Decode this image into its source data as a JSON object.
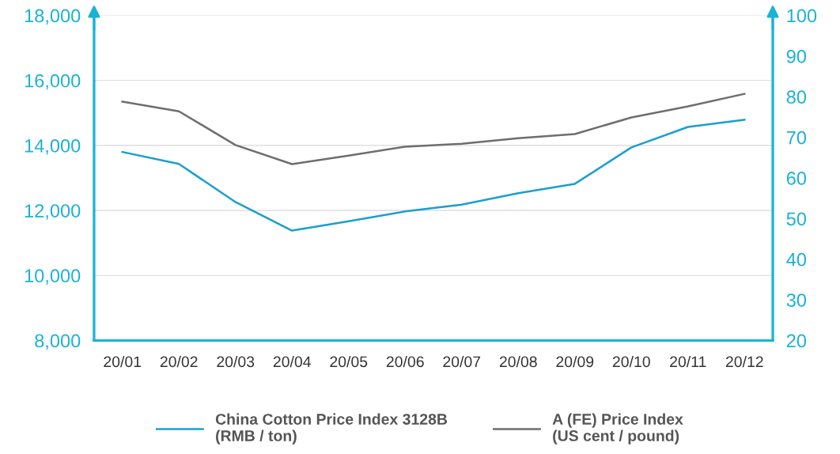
{
  "chart_data": {
    "type": "line",
    "categories": [
      "20/01",
      "20/02",
      "20/03",
      "20/04",
      "20/05",
      "20/06",
      "20/07",
      "20/08",
      "20/09",
      "20/10",
      "20/11",
      "20/12"
    ],
    "series": [
      {
        "name": "China Cotton Price Index 3128B\n(RMB / ton)",
        "color": "#1a9fcf",
        "values": [
          13800,
          13430,
          12260,
          11380,
          11670,
          11970,
          12180,
          12530,
          12820,
          13940,
          14570,
          14790
        ]
      },
      {
        "name": "A (FE) Price Index\n(US cent / pound)",
        "color": "#6d6e71",
        "axis": "y2",
        "values": [
          78.8,
          76.4,
          68.1,
          63.4,
          65.5,
          67.7,
          68.4,
          69.8,
          70.8,
          74.9,
          77.6,
          80.7
        ]
      }
    ],
    "ylim": [
      8000,
      18000
    ],
    "yticks": [
      {
        "value": 8000,
        "label": "8,000"
      },
      {
        "value": 10000,
        "label": "10,000"
      },
      {
        "value": 12000,
        "label": "12,000"
      },
      {
        "value": 14000,
        "label": "14,000"
      },
      {
        "value": 16000,
        "label": "16,000"
      },
      {
        "value": 18000,
        "label": "18,000"
      }
    ],
    "y2lim": [
      20,
      100
    ],
    "y2ticks": [
      20,
      30,
      40,
      50,
      60,
      70,
      80,
      90,
      100
    ],
    "grid": "y",
    "legend": "bottom",
    "line_style": "solid",
    "marker": "none"
  }
}
